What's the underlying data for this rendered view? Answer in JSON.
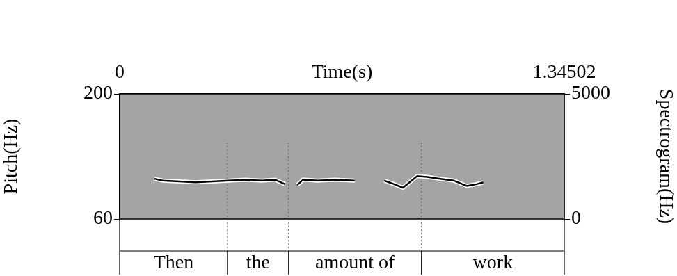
{
  "chart_data": {
    "type": "line",
    "x_label": "Time(s)",
    "y_label": "Pitch(Hz)",
    "y2_label": "Spectrogram(Hz)",
    "x": [
      0.105,
      0.13,
      0.18,
      0.23,
      0.28,
      0.33,
      0.38,
      0.43,
      0.47,
      0.5,
      0.52,
      0.537,
      0.555,
      0.6,
      0.65,
      0.711,
      0.75,
      0.8,
      0.83,
      0.857,
      0.88,
      0.9,
      0.93,
      0.97,
      1.01,
      1.05,
      1.08,
      1.1
    ],
    "values": [
      105,
      103,
      102,
      101,
      102,
      103,
      104,
      103,
      104,
      99,
      null,
      98,
      104,
      103,
      104,
      103,
      null,
      103,
      99,
      95,
      102,
      108,
      107,
      105,
      103,
      97,
      99,
      101
    ],
    "color": "#000000",
    "xlim": [
      0,
      1.34502
    ],
    "xticks": [
      0,
      1.34502
    ],
    "ylim": [
      60,
      200
    ],
    "yticks": [
      60,
      200
    ],
    "y2lim": [
      0,
      5000
    ],
    "y2ticks": [
      0,
      5000
    ],
    "grid": false,
    "intervals": [
      {
        "text": "Then",
        "start": 0,
        "end": 0.326
      },
      {
        "text": "the",
        "start": 0.326,
        "end": 0.511
      },
      {
        "text": "amount of",
        "start": 0.511,
        "end": 0.913
      },
      {
        "text": "work",
        "start": 0.913,
        "end": 1.34502
      }
    ]
  }
}
